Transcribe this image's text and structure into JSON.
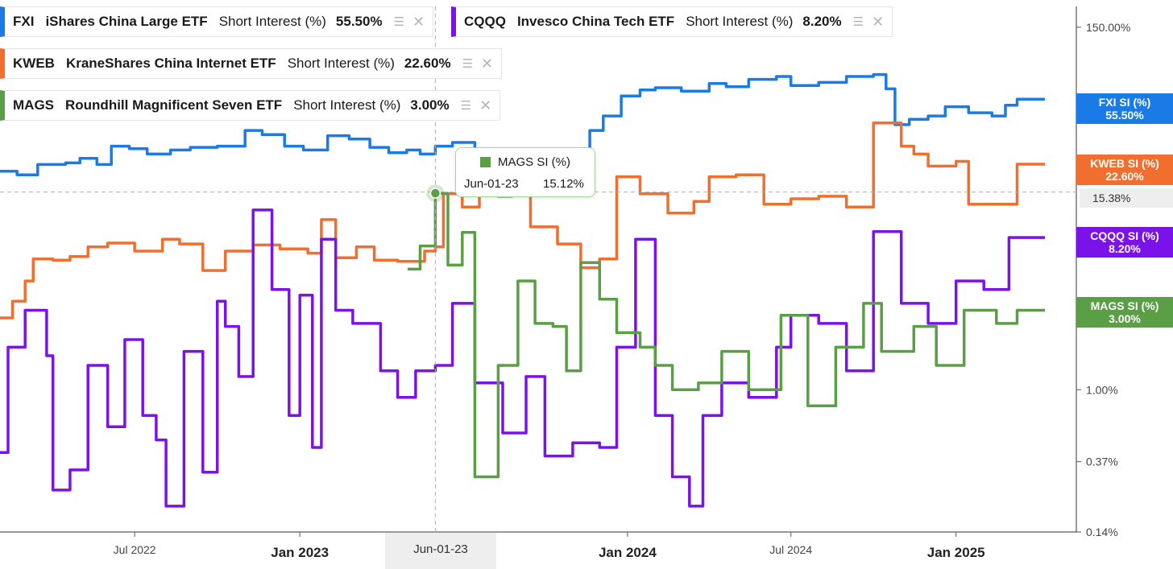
{
  "legend": [
    {
      "ticker": "FXI",
      "name": "iShares China Large ETF",
      "metric": "Short Interest (%)",
      "value": "55.50%",
      "color": "#1a7be6",
      "settings_icon": "layers-plus-icon",
      "close_icon": "close-icon"
    },
    {
      "ticker": "CQQQ",
      "name": "Invesco China Tech ETF",
      "metric": "Short Interest (%)",
      "value": "8.20%",
      "color": "#7c12ea",
      "settings_icon": "layers-plus-icon",
      "close_icon": "close-icon"
    },
    {
      "ticker": "KWEB",
      "name": "KraneShares China Internet ETF",
      "metric": "Short Interest (%)",
      "value": "22.60%",
      "color": "#f26e2e",
      "settings_icon": "layers-plus-icon",
      "close_icon": "close-icon"
    },
    {
      "ticker": "MAGS",
      "name": "Roundhill Magnificent Seven ETF",
      "metric": "Short Interest (%)",
      "value": "3.00%",
      "color": "#5a9e45",
      "settings_icon": "layers-plus-icon",
      "close_icon": "close-icon"
    }
  ],
  "tooltip": {
    "title": "MAGS SI (%)",
    "date": "Jun-01-23",
    "value": "15.12%"
  },
  "crosshair": {
    "date_label": "Jun-01-23",
    "value_label": "15.38%"
  },
  "end_tags": [
    {
      "series": "FXI",
      "label": "FXI SI (%)",
      "value": "55.50%",
      "color": "#1a7be6"
    },
    {
      "series": "KWEB",
      "label": "KWEB SI (%)",
      "value": "22.60%",
      "color": "#f26e2e"
    },
    {
      "series": "CQQQ",
      "label": "CQQQ SI (%)",
      "value": "8.20%",
      "color": "#7c12ea"
    },
    {
      "series": "MAGS",
      "label": "MAGS SI (%)",
      "value": "3.00%",
      "color": "#5a9e45"
    }
  ],
  "chart_data": {
    "type": "line",
    "y_scale": "log",
    "y_unit": "%",
    "y_ticks": [
      {
        "value": 150,
        "label": "150.00%"
      },
      {
        "value": 1,
        "label": "1.00%"
      },
      {
        "value": 0.37,
        "label": "0.37%"
      },
      {
        "value": 0.14,
        "label": "0.14%"
      }
    ],
    "x_ticks": [
      {
        "date": "2022-07-01",
        "label": "Jul 2022"
      },
      {
        "date": "2023-01-01",
        "label": "Jan 2023"
      },
      {
        "date": "2024-01-01",
        "label": "Jan 2024"
      },
      {
        "date": "2024-07-01",
        "label": "Jul 2024"
      },
      {
        "date": "2025-01-01",
        "label": "Jan 2025"
      }
    ],
    "x_range": [
      "2022-02-01",
      "2025-05-15"
    ],
    "y_range": [
      0.14,
      200
    ],
    "series": [
      {
        "name": "FXI SI (%)",
        "color": "#1a7be6",
        "points": [
          [
            "2022-02-01",
            20.5
          ],
          [
            "2022-02-20",
            19.5
          ],
          [
            "2022-03-15",
            22.5
          ],
          [
            "2022-04-15",
            23.0
          ],
          [
            "2022-05-01",
            24.5
          ],
          [
            "2022-05-20",
            22.5
          ],
          [
            "2022-06-05",
            29.0
          ],
          [
            "2022-06-25",
            28.0
          ],
          [
            "2022-07-15",
            26.0
          ],
          [
            "2022-08-10",
            27.5
          ],
          [
            "2022-09-01",
            28.5
          ],
          [
            "2022-10-01",
            29.0
          ],
          [
            "2022-11-01",
            36.0
          ],
          [
            "2022-11-20",
            34.0
          ],
          [
            "2022-12-15",
            29.0
          ],
          [
            "2023-01-05",
            27.5
          ],
          [
            "2023-02-01",
            33.5
          ],
          [
            "2023-02-25",
            32.0
          ],
          [
            "2023-03-20",
            28.5
          ],
          [
            "2023-04-10",
            26.5
          ],
          [
            "2023-04-30",
            27.5
          ],
          [
            "2023-05-15",
            26.0
          ],
          [
            "2023-06-01",
            29.0
          ],
          [
            "2023-06-20",
            30.5
          ],
          [
            "2023-07-15",
            28.0
          ],
          [
            "2023-08-15",
            25.5
          ],
          [
            "2023-09-15",
            24.0
          ],
          [
            "2023-10-15",
            25.0
          ],
          [
            "2023-11-10",
            26.5
          ],
          [
            "2023-11-20",
            36.0
          ],
          [
            "2023-12-05",
            44.0
          ],
          [
            "2023-12-25",
            58.0
          ],
          [
            "2024-01-15",
            63.0
          ],
          [
            "2024-02-01",
            65.0
          ],
          [
            "2024-03-01",
            62.0
          ],
          [
            "2024-04-01",
            69.0
          ],
          [
            "2024-04-20",
            66.0
          ],
          [
            "2024-05-15",
            73.0
          ],
          [
            "2024-06-15",
            76.0
          ],
          [
            "2024-07-01",
            67.0
          ],
          [
            "2024-08-01",
            70.0
          ],
          [
            "2024-09-01",
            76.0
          ],
          [
            "2024-10-01",
            78.0
          ],
          [
            "2024-10-15",
            64.0
          ],
          [
            "2024-10-25",
            39.0
          ],
          [
            "2024-11-10",
            42.0
          ],
          [
            "2024-12-01",
            44.0
          ],
          [
            "2024-12-20",
            50.0
          ],
          [
            "2025-01-15",
            46.0
          ],
          [
            "2025-02-10",
            44.0
          ],
          [
            "2025-02-25",
            51.0
          ],
          [
            "2025-03-10",
            55.5
          ],
          [
            "2025-04-10",
            55.5
          ]
        ]
      },
      {
        "name": "KWEB SI (%)",
        "color": "#f26e2e",
        "points": [
          [
            "2022-02-01",
            2.7
          ],
          [
            "2022-02-15",
            3.4
          ],
          [
            "2022-03-01",
            4.5
          ],
          [
            "2022-03-10",
            6.1
          ],
          [
            "2022-04-01",
            6.0
          ],
          [
            "2022-04-20",
            6.3
          ],
          [
            "2022-05-10",
            7.2
          ],
          [
            "2022-06-01",
            7.6
          ],
          [
            "2022-07-01",
            6.8
          ],
          [
            "2022-08-01",
            8.0
          ],
          [
            "2022-08-20",
            7.5
          ],
          [
            "2022-09-15",
            5.2
          ],
          [
            "2022-10-10",
            6.8
          ],
          [
            "2022-11-10",
            7.4
          ],
          [
            "2022-12-10",
            7.0
          ],
          [
            "2023-01-10",
            6.6
          ],
          [
            "2023-01-25",
            10.5
          ],
          [
            "2023-02-10",
            6.2
          ],
          [
            "2023-03-05",
            7.2
          ],
          [
            "2023-03-25",
            6.0
          ],
          [
            "2023-04-20",
            5.9
          ],
          [
            "2023-05-20",
            6.8
          ],
          [
            "2023-06-01",
            7.2
          ],
          [
            "2023-06-10",
            15.0
          ],
          [
            "2023-07-01",
            12.5
          ],
          [
            "2023-07-20",
            18.0
          ],
          [
            "2023-08-10",
            14.5
          ],
          [
            "2023-08-25",
            15.5
          ],
          [
            "2023-09-15",
            9.5
          ],
          [
            "2023-10-15",
            7.5
          ],
          [
            "2023-11-10",
            5.4
          ],
          [
            "2023-12-01",
            6.1
          ],
          [
            "2023-12-20",
            19.0
          ],
          [
            "2024-01-15",
            15.0
          ],
          [
            "2024-02-15",
            11.5
          ],
          [
            "2024-03-15",
            13.5
          ],
          [
            "2024-04-01",
            19.0
          ],
          [
            "2024-05-01",
            19.5
          ],
          [
            "2024-06-01",
            13.0
          ],
          [
            "2024-07-01",
            14.0
          ],
          [
            "2024-08-01",
            14.5
          ],
          [
            "2024-09-01",
            12.5
          ],
          [
            "2024-10-01",
            40.0
          ],
          [
            "2024-11-01",
            29.0
          ],
          [
            "2024-11-15",
            26.0
          ],
          [
            "2024-12-01",
            22.0
          ],
          [
            "2025-01-01",
            23.5
          ],
          [
            "2025-01-15",
            13.0
          ],
          [
            "2025-03-10",
            22.6
          ],
          [
            "2025-04-10",
            22.6
          ]
        ]
      },
      {
        "name": "CQQQ SI (%)",
        "color": "#7c12ea",
        "points": [
          [
            "2022-02-01",
            0.42
          ],
          [
            "2022-02-10",
            1.8
          ],
          [
            "2022-03-01",
            3.0
          ],
          [
            "2022-03-25",
            1.6
          ],
          [
            "2022-04-01",
            0.25
          ],
          [
            "2022-04-20",
            0.33
          ],
          [
            "2022-05-10",
            1.4
          ],
          [
            "2022-06-01",
            0.6
          ],
          [
            "2022-06-20",
            2.0
          ],
          [
            "2022-07-10",
            0.7
          ],
          [
            "2022-07-25",
            0.5
          ],
          [
            "2022-08-05",
            0.2
          ],
          [
            "2022-08-25",
            1.7
          ],
          [
            "2022-09-15",
            0.32
          ],
          [
            "2022-10-01",
            3.4
          ],
          [
            "2022-10-10",
            2.4
          ],
          [
            "2022-10-25",
            1.2
          ],
          [
            "2022-11-10",
            12.0
          ],
          [
            "2022-12-01",
            4.0
          ],
          [
            "2022-12-20",
            0.7
          ],
          [
            "2023-01-01",
            3.7
          ],
          [
            "2023-01-15",
            0.45
          ],
          [
            "2023-01-25",
            8.0
          ],
          [
            "2023-02-10",
            3.0
          ],
          [
            "2023-03-01",
            2.5
          ],
          [
            "2023-04-01",
            1.3
          ],
          [
            "2023-04-20",
            0.9
          ],
          [
            "2023-05-10",
            1.3
          ],
          [
            "2023-06-01",
            1.4
          ],
          [
            "2023-06-20",
            3.3
          ],
          [
            "2023-07-15",
            1.1
          ],
          [
            "2023-08-15",
            0.55
          ],
          [
            "2023-09-10",
            1.2
          ],
          [
            "2023-10-01",
            0.4
          ],
          [
            "2023-11-01",
            0.48
          ],
          [
            "2023-12-01",
            0.45
          ],
          [
            "2023-12-20",
            1.8
          ],
          [
            "2024-01-10",
            8.0
          ],
          [
            "2024-02-01",
            0.7
          ],
          [
            "2024-02-20",
            0.3
          ],
          [
            "2024-03-10",
            0.2
          ],
          [
            "2024-03-25",
            0.7
          ],
          [
            "2024-04-15",
            1.1
          ],
          [
            "2024-05-15",
            0.9
          ],
          [
            "2024-06-15",
            1.8
          ],
          [
            "2024-07-01",
            2.8
          ],
          [
            "2024-08-01",
            2.5
          ],
          [
            "2024-09-01",
            1.3
          ],
          [
            "2024-10-01",
            8.9
          ],
          [
            "2024-11-01",
            3.3
          ],
          [
            "2024-12-01",
            2.5
          ],
          [
            "2025-01-01",
            4.5
          ],
          [
            "2025-02-01",
            4.0
          ],
          [
            "2025-03-01",
            8.2
          ],
          [
            "2025-04-10",
            8.2
          ]
        ]
      },
      {
        "name": "MAGS SI (%)",
        "color": "#5a9e45",
        "points": [
          [
            "2023-05-01",
            5.3
          ],
          [
            "2023-05-15",
            7.3
          ],
          [
            "2023-06-01",
            15.1
          ],
          [
            "2023-06-15",
            5.6
          ],
          [
            "2023-07-01",
            8.8
          ],
          [
            "2023-07-15",
            0.3
          ],
          [
            "2023-08-10",
            1.4
          ],
          [
            "2023-09-01",
            4.5
          ],
          [
            "2023-09-20",
            2.5
          ],
          [
            "2023-10-10",
            2.4
          ],
          [
            "2023-10-25",
            1.3
          ],
          [
            "2023-11-10",
            5.8
          ],
          [
            "2023-12-01",
            3.5
          ],
          [
            "2023-12-20",
            2.2
          ],
          [
            "2024-01-15",
            1.8
          ],
          [
            "2024-02-01",
            1.4
          ],
          [
            "2024-02-20",
            1.0
          ],
          [
            "2024-03-20",
            1.1
          ],
          [
            "2024-04-15",
            1.7
          ],
          [
            "2024-05-15",
            1.0
          ],
          [
            "2024-06-20",
            2.8
          ],
          [
            "2024-07-20",
            0.8
          ],
          [
            "2024-08-20",
            1.8
          ],
          [
            "2024-09-20",
            3.3
          ],
          [
            "2024-10-10",
            1.7
          ],
          [
            "2024-11-15",
            2.4
          ],
          [
            "2024-12-10",
            1.4
          ],
          [
            "2025-01-10",
            3.0
          ],
          [
            "2025-02-15",
            2.5
          ],
          [
            "2025-03-10",
            3.0
          ],
          [
            "2025-04-10",
            3.0
          ]
        ]
      }
    ]
  }
}
